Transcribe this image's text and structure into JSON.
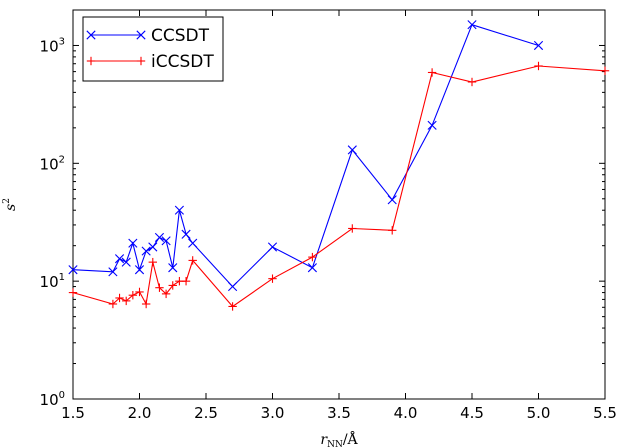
{
  "chart_data": {
    "type": "line",
    "xlabel": "r_NN/Å",
    "ylabel": "s²",
    "xlim": [
      1.5,
      5.5
    ],
    "ylim": [
      1,
      2000
    ],
    "yscale": "log",
    "xticks": [
      "1.5",
      "2.0",
      "2.5",
      "3.0",
      "3.5",
      "4.0",
      "4.5",
      "5.0",
      "5.5"
    ],
    "yticks": [
      {
        "value": 1,
        "base": "10",
        "exp": "0"
      },
      {
        "value": 10,
        "base": "10",
        "exp": "1"
      },
      {
        "value": 100,
        "base": "10",
        "exp": "2"
      },
      {
        "value": 1000,
        "base": "10",
        "exp": "3"
      }
    ],
    "grid": false,
    "legend_position": "top-left",
    "series": [
      {
        "name": "CCSDT",
        "color": "#0000ff",
        "marker": "x",
        "points": [
          [
            1.5,
            12.5
          ],
          [
            1.8,
            12.0
          ],
          [
            1.85,
            15.5
          ],
          [
            1.9,
            14.5
          ],
          [
            1.95,
            21.0
          ],
          [
            2.0,
            12.5
          ],
          [
            2.05,
            18.0
          ],
          [
            2.1,
            19.5
          ],
          [
            2.15,
            23.5
          ],
          [
            2.2,
            22.0
          ],
          [
            2.25,
            13.0
          ],
          [
            2.3,
            40.0
          ],
          [
            2.35,
            25.0
          ],
          [
            2.4,
            21.0
          ],
          [
            2.7,
            9.0
          ],
          [
            3.0,
            19.5
          ],
          [
            3.3,
            13.0
          ],
          [
            3.6,
            130.0
          ],
          [
            3.9,
            49.0
          ],
          [
            4.2,
            210.0
          ],
          [
            4.5,
            1500.0
          ],
          [
            5.0,
            1000.0
          ]
        ]
      },
      {
        "name": "iCCSDT",
        "color": "#ff0000",
        "marker": "+",
        "points": [
          [
            1.5,
            8.0
          ],
          [
            1.8,
            6.4
          ],
          [
            1.85,
            7.2
          ],
          [
            1.9,
            6.8
          ],
          [
            1.95,
            7.6
          ],
          [
            2.0,
            8.1
          ],
          [
            2.05,
            6.4
          ],
          [
            2.1,
            14.5
          ],
          [
            2.15,
            8.8
          ],
          [
            2.2,
            7.8
          ],
          [
            2.25,
            9.2
          ],
          [
            2.3,
            10.0
          ],
          [
            2.35,
            10.0
          ],
          [
            2.4,
            15.0
          ],
          [
            2.7,
            6.1
          ],
          [
            3.0,
            10.5
          ],
          [
            3.3,
            16.0
          ],
          [
            3.6,
            28.0
          ],
          [
            3.9,
            27.0
          ],
          [
            4.2,
            590.0
          ],
          [
            4.5,
            490.0
          ],
          [
            5.0,
            670.0
          ],
          [
            5.5,
            610.0
          ]
        ]
      }
    ]
  }
}
